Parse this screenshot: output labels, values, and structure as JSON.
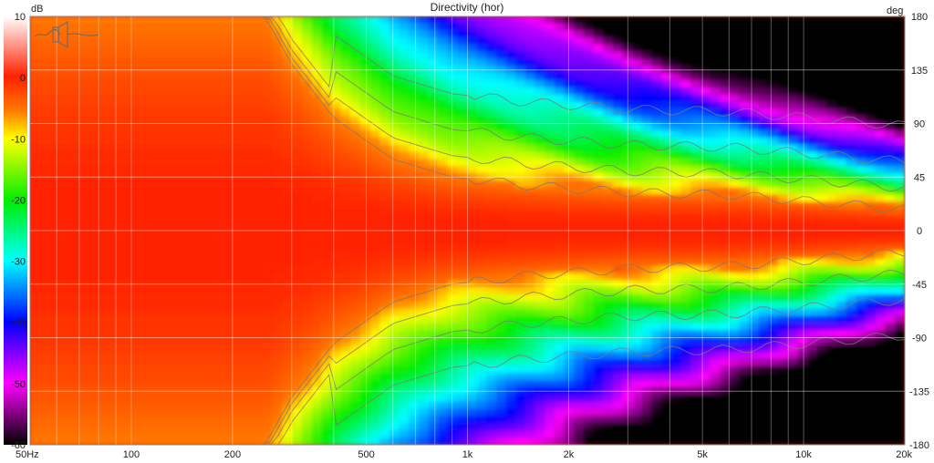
{
  "chart_data": {
    "type": "heatmap",
    "title": "Directivity (hor)",
    "xscale": "log",
    "xlim": [
      50,
      20000
    ],
    "x_ticks": [
      {
        "value": 50,
        "label": "50Hz"
      },
      {
        "value": 100,
        "label": "100"
      },
      {
        "value": 200,
        "label": "200"
      },
      {
        "value": 500,
        "label": "500"
      },
      {
        "value": 1000,
        "label": "1k"
      },
      {
        "value": 2000,
        "label": "2k"
      },
      {
        "value": 5000,
        "label": "5k"
      },
      {
        "value": 10000,
        "label": "10k"
      },
      {
        "value": 20000,
        "label": "20k"
      }
    ],
    "ylim": [
      -180,
      180
    ],
    "ylabel": "deg",
    "y_ticks": [
      180,
      135,
      90,
      45,
      0,
      -45,
      -90,
      -135,
      -180
    ],
    "colorbar": {
      "label": "dB",
      "range": [
        -60,
        10
      ],
      "ticks": [
        10,
        0,
        -10,
        -20,
        -30,
        -40,
        -50,
        -60
      ]
    },
    "colors": {
      "0": "#ff2000",
      "-6": "#ff7a00",
      "-10": "#ffff00",
      "-20": "#00ee00",
      "-30": "#00ffff",
      "-40": "#0000ff",
      "-50": "#ff00ff",
      "-60": "#000000"
    },
    "beamwidth_6db": [
      {
        "f": 50,
        "deg": 180
      },
      {
        "f": 250,
        "deg": 180
      },
      {
        "f": 300,
        "deg": 140
      },
      {
        "f": 400,
        "deg": 95
      },
      {
        "f": 600,
        "deg": 60
      },
      {
        "f": 900,
        "deg": 45
      },
      {
        "f": 1500,
        "deg": 38
      },
      {
        "f": 3000,
        "deg": 32
      },
      {
        "f": 6000,
        "deg": 30
      },
      {
        "f": 10000,
        "deg": 25
      },
      {
        "f": 20000,
        "deg": 18
      }
    ],
    "grid": true
  },
  "icons": {
    "speaker": "speaker-icon"
  }
}
